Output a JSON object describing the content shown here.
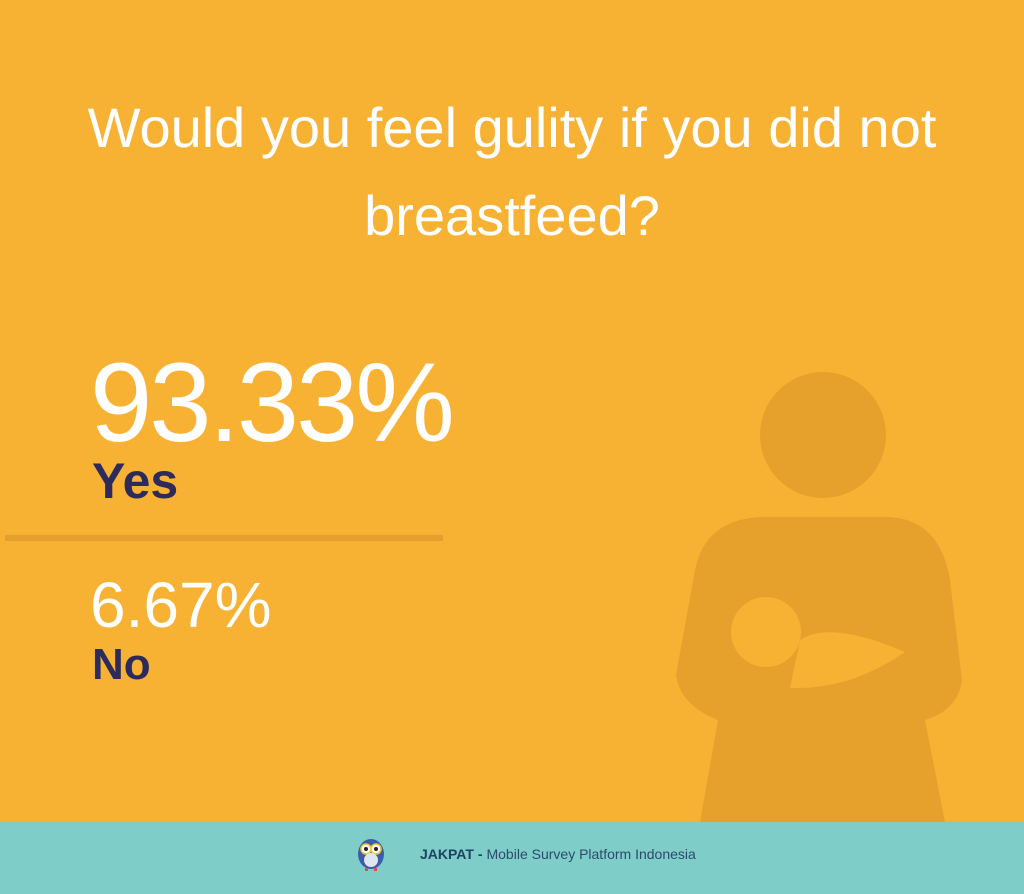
{
  "title": "Would you feel gulity if you did not breastfeed?",
  "results": [
    {
      "value": "93.33%",
      "label": "Yes"
    },
    {
      "value": "6.67%",
      "label": "No"
    }
  ],
  "footer": {
    "brand": "JAKPAT -",
    "tagline": "Mobile Survey Platform Indonesia"
  }
}
